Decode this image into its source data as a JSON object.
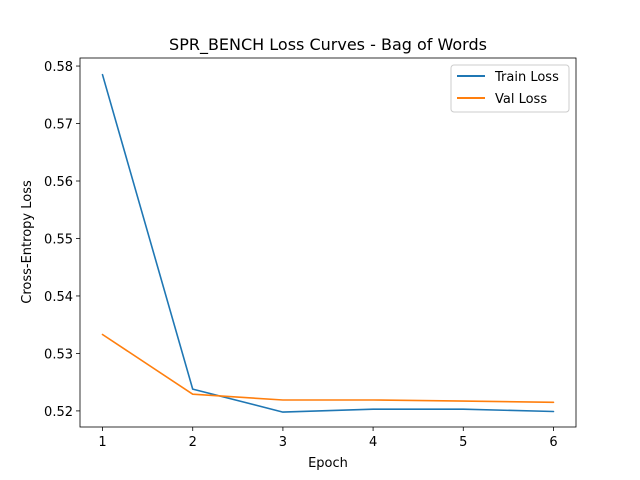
{
  "chart_data": {
    "type": "line",
    "title": "SPR_BENCH Loss Curves - Bag of Words",
    "xlabel": "Epoch",
    "ylabel": "Cross-Entropy Loss",
    "x": [
      1,
      2,
      3,
      4,
      5,
      6
    ],
    "xticks": [
      1,
      2,
      3,
      4,
      5,
      6
    ],
    "yticks": [
      0.52,
      0.53,
      0.54,
      0.55,
      0.56,
      0.57,
      0.58
    ],
    "xlim": [
      0.75,
      6.25
    ],
    "ylim": [
      0.5172,
      0.5814
    ],
    "grid": false,
    "legend_position": "top-right",
    "series": [
      {
        "name": "Train Loss",
        "color": "#1f77b4",
        "values": [
          0.5785,
          0.5238,
          0.5198,
          0.5203,
          0.5203,
          0.5199
        ]
      },
      {
        "name": "Val Loss",
        "color": "#ff7f0e",
        "values": [
          0.5333,
          0.5229,
          0.5219,
          0.5219,
          0.5217,
          0.5215
        ]
      }
    ]
  }
}
